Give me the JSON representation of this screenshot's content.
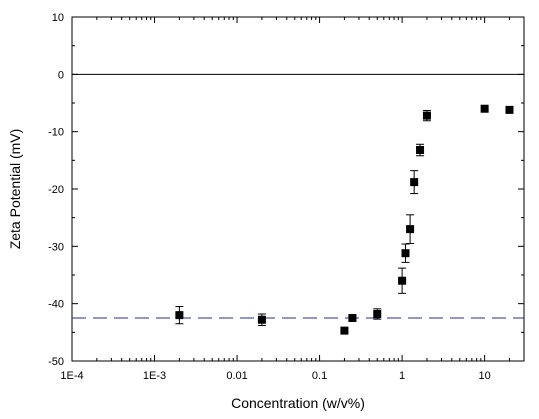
{
  "chart_data": {
    "type": "scatter",
    "xlabel": "Concentration (w/v%)",
    "ylabel": "Zeta Potential (mV)",
    "x_scale": "log",
    "xlim": [
      0.0001,
      30
    ],
    "ylim": [
      -50,
      10
    ],
    "x_ticks": [
      {
        "value": 0.0001,
        "label": "1E-4"
      },
      {
        "value": 0.001,
        "label": "1E-3"
      },
      {
        "value": 0.01,
        "label": "0.01"
      },
      {
        "value": 0.1,
        "label": "0.1"
      },
      {
        "value": 1,
        "label": "1"
      },
      {
        "value": 10,
        "label": "10"
      }
    ],
    "y_ticks": [
      {
        "value": 10,
        "label": "10"
      },
      {
        "value": 0,
        "label": "0"
      },
      {
        "value": -10,
        "label": "-10"
      },
      {
        "value": -20,
        "label": "-20"
      },
      {
        "value": -30,
        "label": "-30"
      },
      {
        "value": -40,
        "label": "-40"
      },
      {
        "value": -50,
        "label": "-50"
      }
    ],
    "grid": false,
    "reference_lines": [
      {
        "y": 0,
        "style": "solid",
        "color": "#000000"
      },
      {
        "y": -42.5,
        "style": "dashed",
        "color": "#2b2b9b"
      }
    ],
    "series": [
      {
        "marker": "square",
        "color": "#000000",
        "points": [
          {
            "x": 0.002,
            "y": -42.0,
            "err": 1.5
          },
          {
            "x": 0.02,
            "y": -42.8,
            "err": 1.0
          },
          {
            "x": 0.2,
            "y": -44.7,
            "err": 0
          },
          {
            "x": 0.25,
            "y": -42.5,
            "err": 0.4
          },
          {
            "x": 0.5,
            "y": -41.8,
            "err": 0.9
          },
          {
            "x": 1.0,
            "y": -36.0,
            "err": 2.2
          },
          {
            "x": 1.1,
            "y": -31.2,
            "err": 1.6
          },
          {
            "x": 1.25,
            "y": -27.0,
            "err": 2.5
          },
          {
            "x": 1.4,
            "y": -18.8,
            "err": 2.0
          },
          {
            "x": 1.65,
            "y": -13.2,
            "err": 1.0
          },
          {
            "x": 2.0,
            "y": -7.2,
            "err": 0.9
          },
          {
            "x": 10,
            "y": -6.0,
            "err": 0
          },
          {
            "x": 20,
            "y": -6.2,
            "err": 0
          }
        ]
      }
    ]
  }
}
